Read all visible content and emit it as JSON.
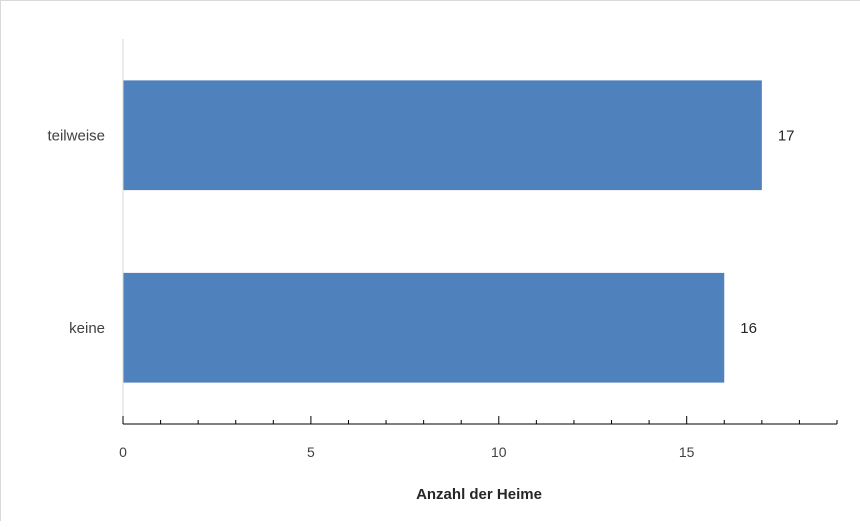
{
  "chart_data": {
    "type": "bar",
    "orientation": "horizontal",
    "title": "",
    "xlabel": "Anzahl der Heime",
    "ylabel": "",
    "categories": [
      "teilweise",
      "keine"
    ],
    "values": [
      17,
      16
    ],
    "data_labels": [
      "17",
      "16"
    ],
    "xlim": [
      0,
      19
    ],
    "x_major_ticks": [
      0,
      5,
      10,
      15
    ],
    "x_minor_step": 1,
    "grid": false,
    "legend": "none",
    "colors": {
      "bar": "#4f81bd",
      "axis": "#000000",
      "category_axis": "#d9d9d9"
    }
  }
}
